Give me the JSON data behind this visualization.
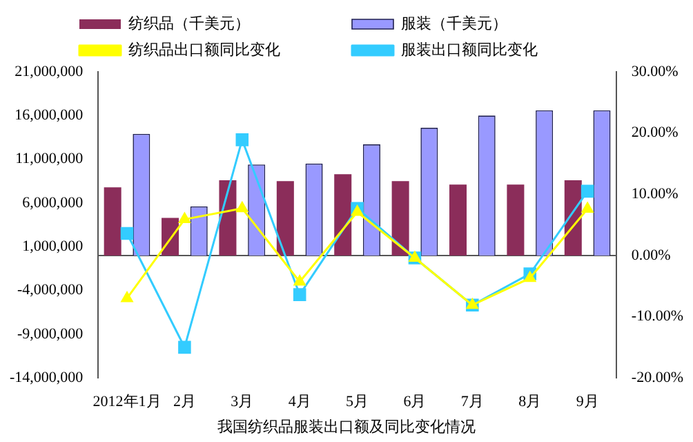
{
  "chart_data": {
    "type": "bar",
    "title": "我国纺织品服装出口额及同比变化情况",
    "categories": [
      "2012年1月",
      "2月",
      "3月",
      "4月",
      "5月",
      "6月",
      "7月",
      "8月",
      "9月"
    ],
    "series": [
      {
        "name": "纺织品（千美元）",
        "color": "#8b2d5a",
        "values": [
          7800000,
          4300000,
          8600000,
          8500000,
          9300000,
          8500000,
          8100000,
          8100000,
          8600000
        ]
      },
      {
        "name": "服装（千美元）",
        "color": "#9999ff",
        "values": [
          13900000,
          5600000,
          10400000,
          10500000,
          12700000,
          14600000,
          16000000,
          16600000,
          16600000
        ]
      },
      {
        "name": "纺织品出口额同比变化",
        "type": "line",
        "axis": "y2",
        "marker": "triangle",
        "color": "#ffff00",
        "values": [
          -7.0,
          5.9,
          7.7,
          -4.3,
          7.1,
          -0.4,
          -8.1,
          -3.7,
          7.6
        ]
      },
      {
        "name": "服装出口额同比变化",
        "type": "line",
        "axis": "y2",
        "marker": "square",
        "color": "#33ccff",
        "values": [
          3.6,
          -15.0,
          18.9,
          -6.4,
          7.7,
          -0.4,
          -8.1,
          -3.0,
          10.5
        ]
      }
    ],
    "ylim": [
      -14000000,
      21000000
    ],
    "yticks": [
      {
        "value": -14000000,
        "label": "-14,000,000"
      },
      {
        "value": -9000000,
        "label": "-9,000,000"
      },
      {
        "value": -4000000,
        "label": "-4,000,000"
      },
      {
        "value": 1000000,
        "label": "1,000,000"
      },
      {
        "value": 6000000,
        "label": "6,000,000"
      },
      {
        "value": 11000000,
        "label": "11,000,000"
      },
      {
        "value": 16000000,
        "label": "16,000,000"
      },
      {
        "value": 21000000,
        "label": "21,000,000"
      }
    ],
    "y2lim": [
      -20,
      30
    ],
    "y2ticks": [
      {
        "value": -20,
        "label": "-20.00%"
      },
      {
        "value": -10,
        "label": "-10.00%"
      },
      {
        "value": 0,
        "label": "0.00%"
      },
      {
        "value": 10,
        "label": "10.00%"
      },
      {
        "value": 20,
        "label": "20.00%"
      },
      {
        "value": 30,
        "label": "30.00%"
      }
    ],
    "legend": "top"
  }
}
